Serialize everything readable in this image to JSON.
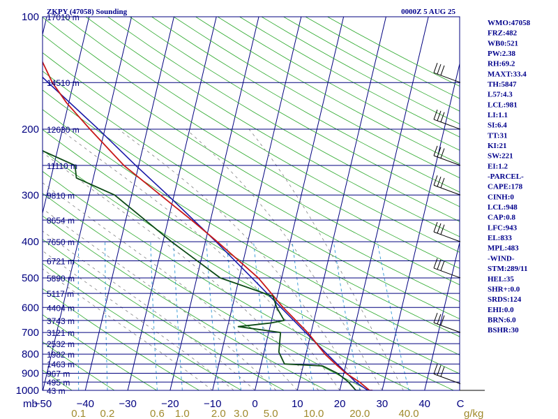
{
  "header": {
    "title": "ZKPY (47058) Sounding",
    "time": "0000Z  5 AUG 25"
  },
  "indices": [
    "WMO:47058",
    "FRZ:482",
    "WB0:521",
    "PW:2.38",
    "RH:69.2",
    "MAXT:33.4",
    "TH:5847",
    "L57:4.3",
    "LCL:981",
    "LI:1.1",
    "SI:6.4",
    "TT:31",
    "KI:21",
    "SW:221",
    "EI:1.2",
    "-PARCEL-",
    "CAPE:178",
    "CINH:0",
    "LCL:948",
    "CAP:0.8",
    "LFC:943",
    "EL:833",
    "MPL:483",
    "-WIND-",
    "STM:289/11",
    "HEL:35",
    "SHR+:0.0",
    "SRDS:124",
    "EHI:0.0",
    "BRN:6.0",
    "BSHR:30"
  ],
  "colors": {
    "isobar": "#00007f",
    "isotherm": "#00007f",
    "dry_adiabat": "#2aa82a",
    "moist_adiabat": "#808080",
    "mixing_ratio": "#3fa0d8",
    "temperature": "#c81818",
    "dewpoint": "#0b4a14",
    "parcel": "#1a1aa8",
    "wind_barb": "#000000"
  },
  "chart_data": {
    "type": "skew-t",
    "pressure_levels": [
      100,
      200,
      300,
      400,
      500,
      600,
      700,
      800,
      900,
      1000
    ],
    "pressure_label_text": [
      "100",
      "200",
      "300",
      "400",
      "500",
      "600",
      "700",
      "800",
      "900",
      "1000"
    ],
    "pressure_unit": "mb",
    "height_labels": [
      {
        "p": 100,
        "text": "17010 m"
      },
      {
        "p": 150,
        "text": "14510 m"
      },
      {
        "p": 200,
        "text": "12630 m"
      },
      {
        "p": 250,
        "text": "11110 m"
      },
      {
        "p": 300,
        "text": "9810 m"
      },
      {
        "p": 350,
        "text": "8654 m"
      },
      {
        "p": 400,
        "text": "7650 m"
      },
      {
        "p": 450,
        "text": "6721 m"
      },
      {
        "p": 500,
        "text": "5890 m"
      },
      {
        "p": 550,
        "text": "5117 m"
      },
      {
        "p": 600,
        "text": "4404 m"
      },
      {
        "p": 650,
        "text": "3743 m"
      },
      {
        "p": 700,
        "text": "3121 m"
      },
      {
        "p": 750,
        "text": "2532 m"
      },
      {
        "p": 800,
        "text": "1982 m"
      },
      {
        "p": 850,
        "text": "1463 m"
      },
      {
        "p": 900,
        "text": "967 m"
      },
      {
        "p": 950,
        "text": "495 m"
      },
      {
        "p": 1000,
        "text": "43 m"
      }
    ],
    "temperature_ticks": [
      -50,
      -40,
      -30,
      -20,
      -10,
      0,
      10,
      20,
      30,
      40
    ],
    "temperature_tick_text": [
      "−50",
      "−40",
      "−30",
      "−20",
      "−10",
      "0",
      "10",
      "20",
      "30",
      "40"
    ],
    "temperature_unit": "C",
    "mixing_ratio_ticks": [
      0.1,
      0.2,
      0.6,
      1.0,
      2.0,
      3.0,
      5.0,
      10.0,
      20.0,
      40.0
    ],
    "mixing_ratio_tick_text": [
      "0.1",
      "0.2",
      "0.6",
      "1.0",
      "2.0",
      "3.0",
      "5.0",
      "10.0",
      "20.0",
      "40.0"
    ],
    "mixing_ratio_unit": "g/kg",
    "temperature_profile": [
      {
        "p": 1008,
        "t": 27.8
      },
      {
        "p": 1000,
        "t": 27.0
      },
      {
        "p": 950,
        "t": 24.2
      },
      {
        "p": 900,
        "t": 20.5
      },
      {
        "p": 850,
        "t": 17.5
      },
      {
        "p": 800,
        "t": 14.5
      },
      {
        "p": 700,
        "t": 9.2
      },
      {
        "p": 600,
        "t": 2.0
      },
      {
        "p": 500,
        "t": -5.5
      },
      {
        "p": 400,
        "t": -17.2
      },
      {
        "p": 350,
        "t": -24.5
      },
      {
        "p": 300,
        "t": -33.2
      },
      {
        "p": 250,
        "t": -43.5
      },
      {
        "p": 200,
        "t": -53.5
      },
      {
        "p": 170,
        "t": -60.5
      },
      {
        "p": 150,
        "t": -65.0
      },
      {
        "p": 125,
        "t": -70.0
      },
      {
        "p": 100,
        "t": -77.0
      }
    ],
    "dewpoint_profile": [
      {
        "p": 1008,
        "t": 25.0
      },
      {
        "p": 1000,
        "t": 23.8
      },
      {
        "p": 950,
        "t": 21.6
      },
      {
        "p": 900,
        "t": 18.5
      },
      {
        "p": 860,
        "t": 14.6
      },
      {
        "p": 850,
        "t": 5.5
      },
      {
        "p": 790,
        "t": 3.5
      },
      {
        "p": 700,
        "t": 2.8
      },
      {
        "p": 675,
        "t": -7.5
      },
      {
        "p": 660,
        "t": 0.0
      },
      {
        "p": 650,
        "t": 3.0
      },
      {
        "p": 600,
        "t": 0.5
      },
      {
        "p": 560,
        "t": -1.0
      },
      {
        "p": 500,
        "t": -14.5
      },
      {
        "p": 400,
        "t": -28.0
      },
      {
        "p": 300,
        "t": -44.0
      },
      {
        "p": 270,
        "t": -54.0
      },
      {
        "p": 250,
        "t": -55.0
      },
      {
        "p": 200,
        "t": -76.0
      },
      {
        "p": 170,
        "t": -84.5
      },
      {
        "p": 150,
        "t": -87.0
      },
      {
        "p": 125,
        "t": -91.0
      },
      {
        "p": 100,
        "t": -97.0
      }
    ],
    "parcel_profile": [
      {
        "p": 1008,
        "t": 27.8
      },
      {
        "p": 1000,
        "t": 26.6
      },
      {
        "p": 950,
        "t": 23.3
      },
      {
        "p": 900,
        "t": 20.7
      },
      {
        "p": 850,
        "t": 17.9
      },
      {
        "p": 800,
        "t": 15.0
      },
      {
        "p": 700,
        "t": 8.7
      },
      {
        "p": 600,
        "t": 1.5
      },
      {
        "p": 500,
        "t": -7.0
      },
      {
        "p": 400,
        "t": -17.5
      },
      {
        "p": 300,
        "t": -31.5
      },
      {
        "p": 250,
        "t": -40.7
      },
      {
        "p": 200,
        "t": -51.5
      },
      {
        "p": 150,
        "t": -66.0
      },
      {
        "p": 125,
        "t": -75.0
      },
      {
        "p": 100,
        "t": -86.0
      }
    ],
    "wind_barbs": [
      {
        "p": 960
      },
      {
        "p": 700
      },
      {
        "p": 500
      },
      {
        "p": 400
      },
      {
        "p": 300
      },
      {
        "p": 250
      },
      {
        "p": 200
      },
      {
        "p": 150
      }
    ]
  }
}
